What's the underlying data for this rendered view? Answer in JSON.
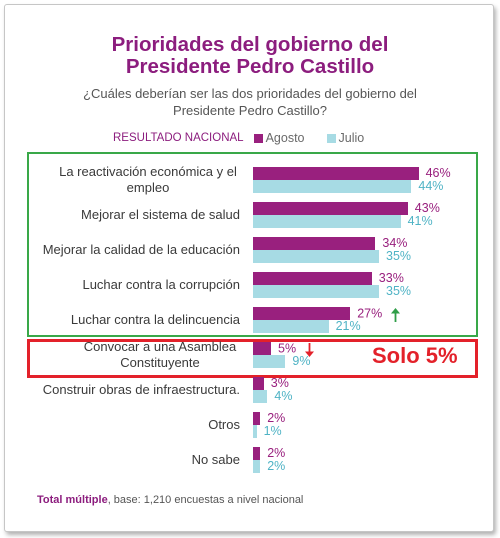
{
  "chart_data": {
    "type": "bar",
    "orientation": "horizontal",
    "title": "Prioridades del gobierno del Presidente Pedro Castillo",
    "subtitle": "¿Cuáles deberían ser las dos prioridades del gobierno del Presidente Pedro Castillo?",
    "legend_title": "RESULTADO NACIONAL",
    "legend_position": "top",
    "xlabel": "",
    "ylabel": "",
    "grid": false,
    "value_suffix": "%",
    "categories": [
      "La reactivación económica y el empleo",
      "Mejorar el sistema de salud",
      "Mejorar la calidad de la educación",
      "Luchar contra la corrupción",
      "Luchar contra la delincuencia",
      "Convocar a una Asamblea Constituyente",
      "Construir obras de infraestructura.",
      "Otros",
      "No sabe"
    ],
    "series": [
      {
        "name": "Agosto",
        "color": "#99207e",
        "label_color": "#99207e",
        "values": [
          46,
          43,
          34,
          33,
          27,
          5,
          3,
          2,
          2
        ]
      },
      {
        "name": "Julio",
        "color": "#a7dbe4",
        "label_color": "#4fb3c5",
        "values": [
          44,
          41,
          35,
          35,
          21,
          9,
          4,
          1,
          2
        ]
      }
    ],
    "trend_arrows": [
      {
        "category_index": 4,
        "series_index": 0,
        "icon": "arrow-up-icon",
        "color": "#2f9e48"
      },
      {
        "category_index": 5,
        "series_index": 0,
        "icon": "arrow-down-icon",
        "color": "#e3212a"
      }
    ],
    "highlights": [
      {
        "color": "#39a848"
      },
      {
        "color": "#e3212a",
        "label": "Solo 5%"
      }
    ]
  },
  "footer": {
    "bold": "Total múltiple",
    "text": ", base: 1,210 encuestas a nivel nacional"
  },
  "colors": {
    "accent": "#8c1d7e",
    "label_text": "#3a3a3a",
    "frame_border": "#c6c6c6"
  }
}
